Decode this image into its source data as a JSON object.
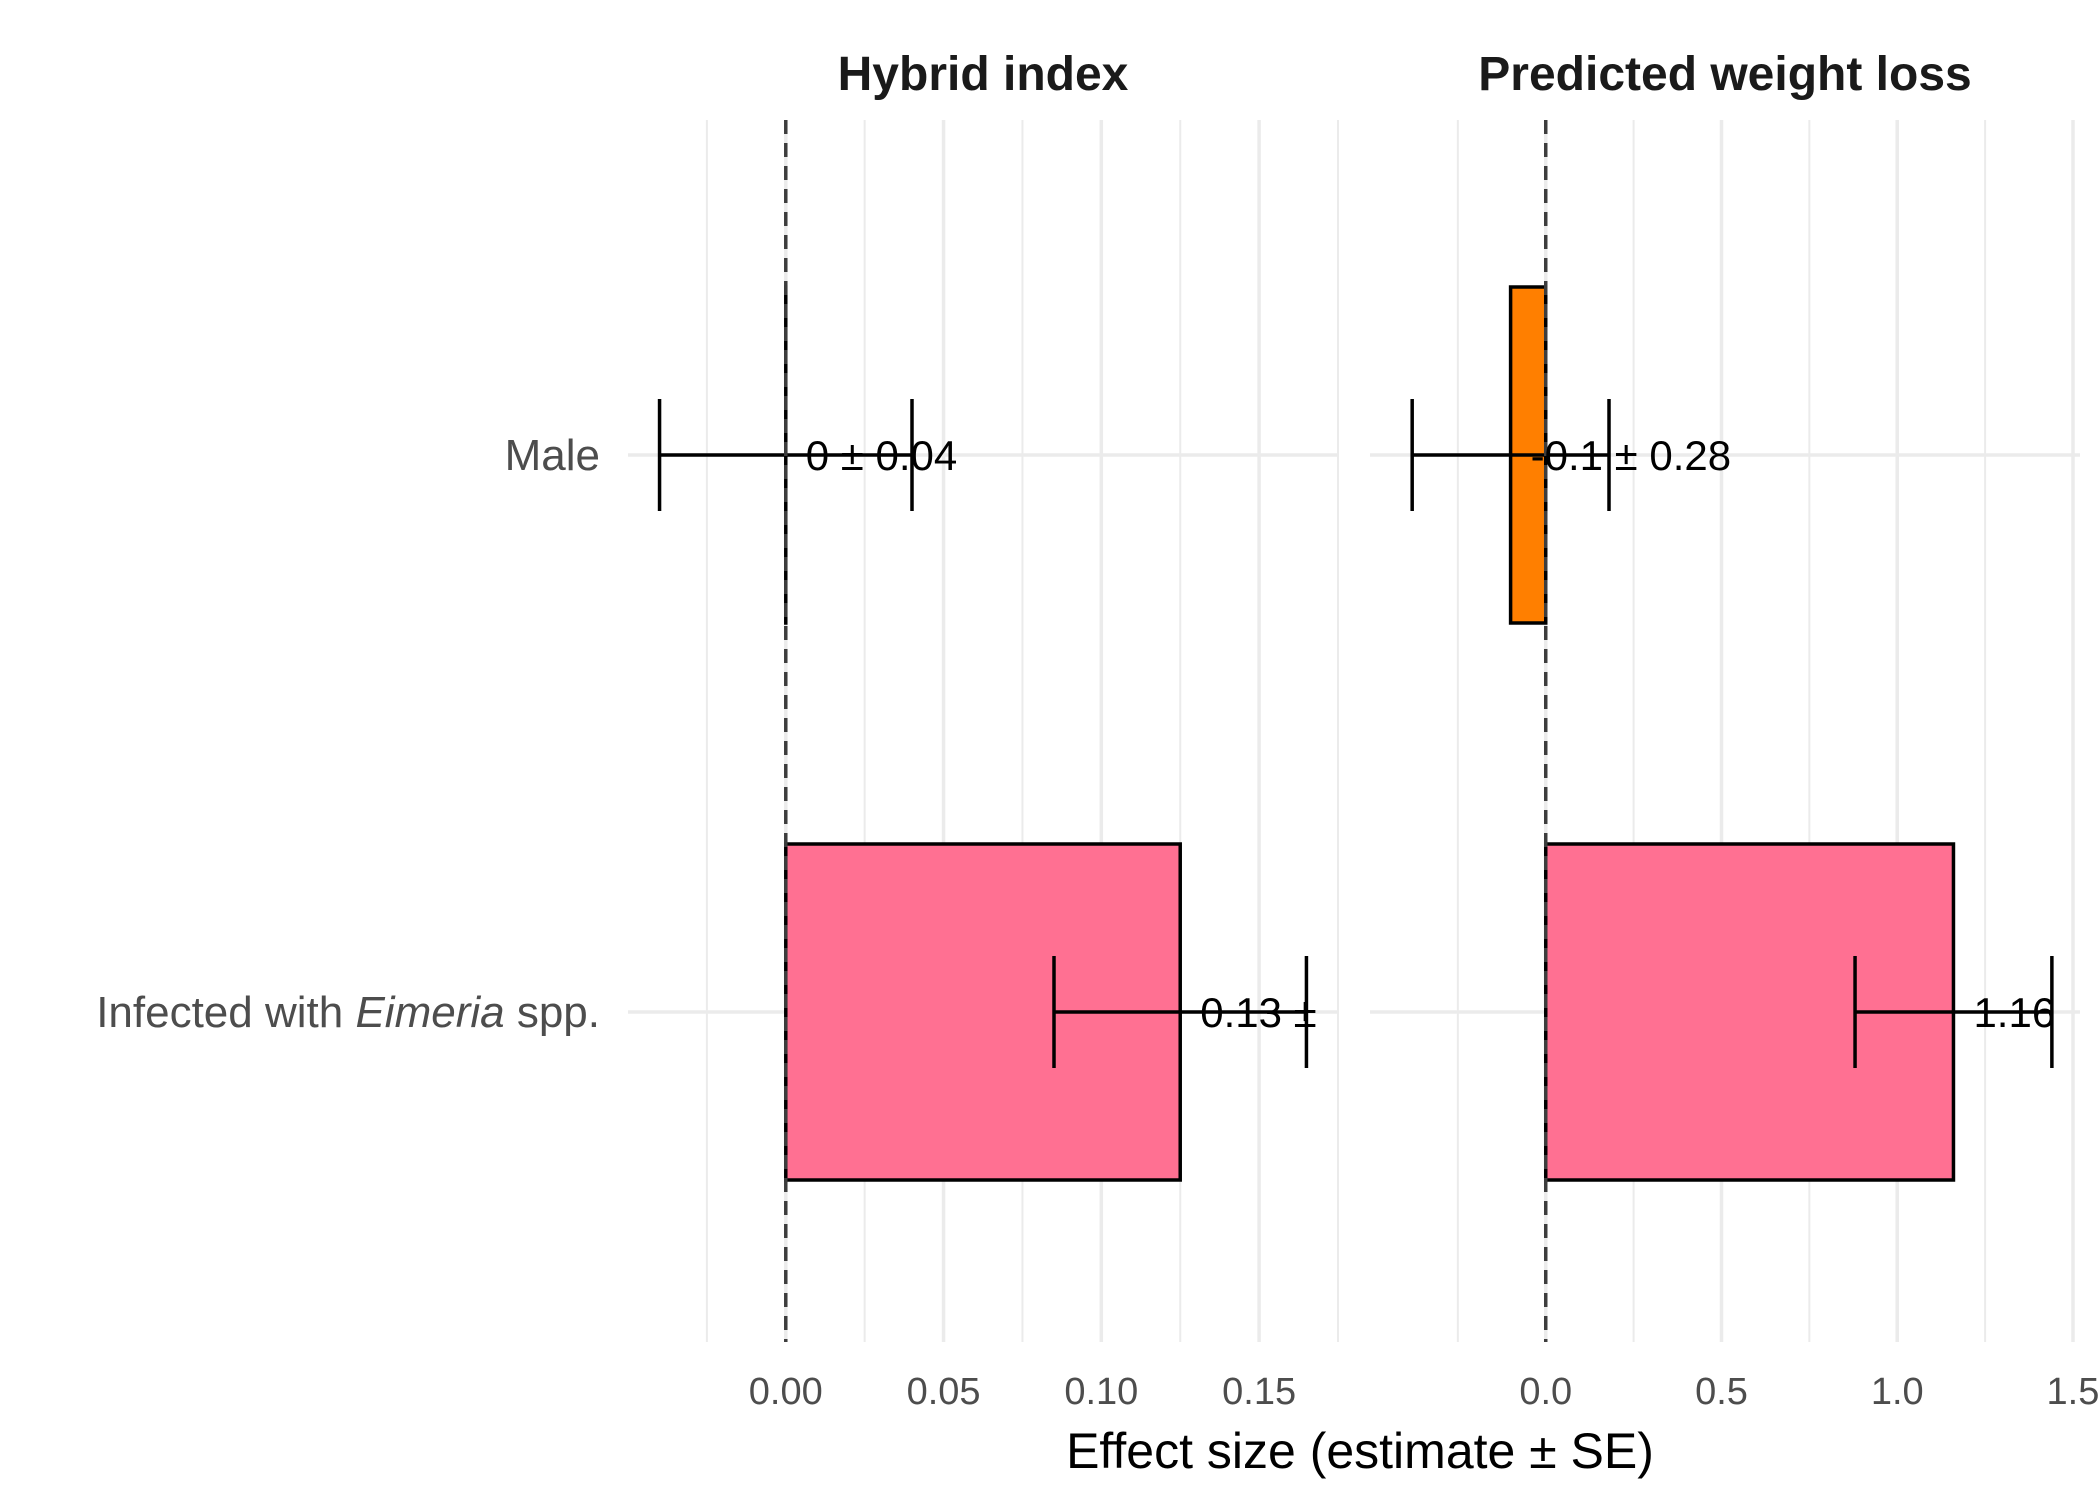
{
  "chart_data": {
    "type": "bar",
    "xlabel": "Effect size (estimate ± SE)",
    "categories": [
      {
        "pre": "Male",
        "em": "",
        "post": ""
      },
      {
        "pre": "Infected with ",
        "em": "Eimeria",
        "post": " spp."
      }
    ],
    "reference_line": 0,
    "panels": [
      {
        "title": "Hybrid index",
        "xlim": [
          -0.05,
          0.175
        ],
        "ticks": [
          0.0,
          0.05,
          0.1,
          0.15
        ],
        "tick_labels": [
          "0.00",
          "0.05",
          "0.10",
          "0.15"
        ],
        "bars": [
          {
            "category": "Male",
            "estimate": 0.0,
            "se": 0.04,
            "color": "#000000",
            "label": "0 ± 0.04"
          },
          {
            "category": "Infected with Eimeria spp.",
            "estimate": 0.125,
            "se": 0.04,
            "color": "#FF7092",
            "label": "0.13 ±"
          }
        ]
      },
      {
        "title": "Predicted weight loss",
        "xlim": [
          -0.5,
          1.52
        ],
        "ticks": [
          0.0,
          0.5,
          1.0,
          1.5
        ],
        "tick_labels": [
          "0.0",
          "0.5",
          "1.0",
          "1.5"
        ],
        "bars": [
          {
            "category": "Male",
            "estimate": -0.1,
            "se": 0.28,
            "color": "#FF7F00",
            "label": "-0.1 ± 0.28"
          },
          {
            "category": "Infected with Eimeria spp.",
            "estimate": 1.16,
            "se": 0.28,
            "color": "#FF7092",
            "label": "1.16"
          }
        ]
      }
    ]
  }
}
